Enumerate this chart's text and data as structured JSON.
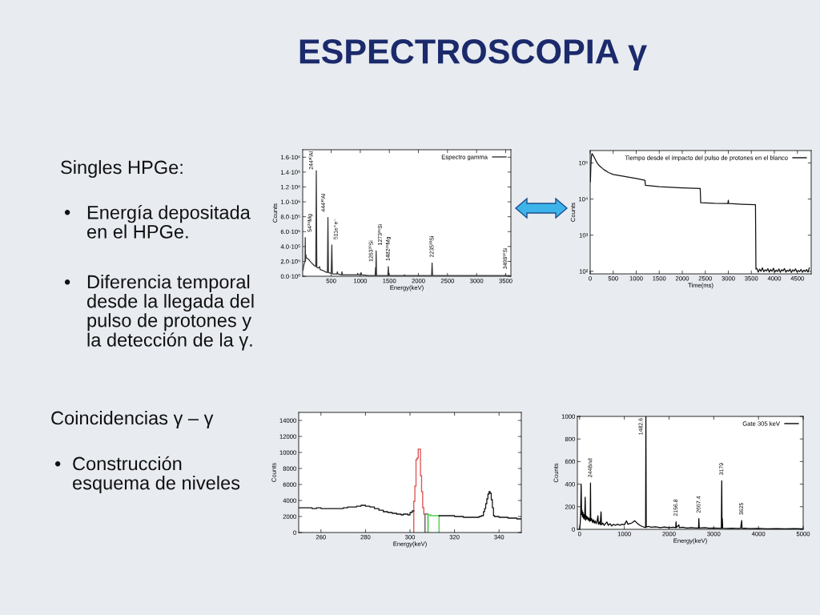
{
  "chart_data": [
    {
      "type": "other",
      "title": "ESPECTROSCOPIA γ",
      "annotations": [
        "Singles HPGe:",
        "• Energía depositada\nen el HPGe.",
        "• Diferencia temporal\ndesde la llegada del\npulso de protones y\nla detección de la γ."
      ]
    },
    {
      "type": "line",
      "xlabel": "Energy(keV)",
      "ylabel": "Counts",
      "legend": "top right",
      "series": [
        {
          "name": "Espectro gamma",
          "color": "#333333",
          "x": [
            15,
            30,
            45,
            50,
            54,
            58,
            62,
            66,
            70,
            90,
            120,
            150,
            200,
            235,
            244,
            253,
            280,
            300,
            310,
            350,
            400,
            435,
            444,
            453,
            500,
            511,
            520,
            600,
            605,
            615,
            680,
            685,
            695,
            800,
            950,
            955,
            965,
            1010,
            1015,
            1025,
            1150,
            1255,
            1263,
            1268,
            1273,
            1280,
            1400,
            1474,
            1482,
            1490,
            1750,
            1760,
            1770,
            2000,
            2227,
            2235,
            2243,
            2500,
            3000,
            3490,
            3498,
            3506,
            3580
          ],
          "values": [
            80000,
            150000,
            190000,
            200000,
            520000,
            210000,
            260000,
            290000,
            250000,
            240000,
            220000,
            190000,
            150000,
            130000,
            1420000,
            120000,
            110000,
            130000,
            90000,
            80000,
            60000,
            50000,
            790000,
            50000,
            40000,
            420000,
            30000,
            30000,
            60000,
            30000,
            20000,
            60000,
            20000,
            20000,
            20000,
            40000,
            20000,
            20000,
            50000,
            20000,
            10000,
            10000,
            120000,
            10000,
            340000,
            10000,
            10000,
            10000,
            130000,
            10000,
            10000,
            20000,
            10000,
            10000,
            10000,
            180000,
            10000,
            10000,
            10000,
            10000,
            20000,
            10000,
            10000
          ]
        }
      ],
      "xlim": [
        10,
        3590
      ],
      "xticks": [
        500,
        1000,
        1500,
        2000,
        2500,
        3000,
        3500
      ],
      "ylim": [
        0,
        1700000
      ],
      "yticks": [
        {
          "value": 0,
          "label": "0.0·10⁰"
        },
        {
          "value": 200000,
          "label": "2.0·10⁵"
        },
        {
          "value": 400000,
          "label": "4.0·10⁵"
        },
        {
          "value": 600000,
          "label": "6.0·10⁵"
        },
        {
          "value": 800000,
          "label": "8.0·10⁵"
        },
        {
          "value": 1000000,
          "label": "1.0·10⁶"
        },
        {
          "value": 1200000,
          "label": "1.2·10⁶"
        },
        {
          "value": 1400000,
          "label": "1.4·10⁶"
        },
        {
          "value": 1600000,
          "label": "1.6·10⁶"
        }
      ],
      "annotations": [
        {
          "text": "54²⁹Mg",
          "x": 54,
          "y": 520000
        },
        {
          "text": "244³⁰Al",
          "x": 244,
          "y": 1420000
        },
        {
          "text": "444³⁰Al",
          "x": 444,
          "y": 790000
        },
        {
          "text": "511e⁺e⁻",
          "x": 511,
          "y": 420000
        },
        {
          "text": "1263³⁰Si",
          "x": 1263,
          "y": 120000
        },
        {
          "text": "1273²⁹Si",
          "x": 1273,
          "y": 340000
        },
        {
          "text": "1482²⁹Mg",
          "x": 1482,
          "y": 130000
        },
        {
          "text": "2235³⁰Si",
          "x": 2235,
          "y": 180000
        },
        {
          "text": "3498³⁰Si",
          "x": 3498,
          "y": 20000
        }
      ]
    },
    {
      "type": "line",
      "xlabel": "Time(ms)",
      "ylabel": "Counts",
      "legend": "top right",
      "log": "y",
      "series": [
        {
          "name": "Tiempo desde el impacto del pulso de protones en el blanco",
          "color": "#111111",
          "x": [
            5,
            15,
            25,
            40,
            60,
            100,
            150,
            200,
            300,
            400,
            500,
            750,
            1000,
            1190,
            1200,
            1500,
            2000,
            2390,
            2400,
            2700,
            2990,
            3000,
            3010,
            3300,
            3590,
            3600,
            3620,
            3650,
            3680,
            3710,
            3740,
            3770,
            3800,
            3830,
            3860,
            3890,
            3920,
            3950,
            3980,
            4010,
            4040,
            4070,
            4100,
            4130,
            4160,
            4190,
            4220,
            4250,
            4280,
            4310,
            4340,
            4370,
            4400,
            4430,
            4460,
            4490,
            4520,
            4550,
            4580,
            4610,
            4640,
            4670,
            4700,
            4730,
            4760
          ],
          "values": [
            30000,
            80000,
            150000,
            180000,
            165000,
            134000,
            100000,
            83000,
            65000,
            54000,
            48000,
            42000,
            37000,
            33000,
            24000,
            22000,
            20500,
            19500,
            7900,
            7600,
            7500,
            9300,
            7500,
            7200,
            7000,
            115,
            120,
            95,
            115,
            100,
            125,
            97,
            110,
            102,
            118,
            95,
            112,
            100,
            122,
            96,
            108,
            99,
            116,
            94,
            111,
            103,
            119,
            95,
            107,
            100,
            115,
            93,
            110,
            101,
            117,
            96,
            105,
            98,
            113,
            94,
            108,
            99,
            112,
            95,
            125
          ]
        }
      ],
      "xlim": [
        0,
        4800
      ],
      "xticks": [
        0,
        500,
        1000,
        1500,
        2000,
        2500,
        3000,
        3500,
        4000,
        4500
      ],
      "ylim": [
        85,
        220000
      ],
      "yticks": [
        {
          "value": 100,
          "label": "10²"
        },
        {
          "value": 1000,
          "label": "10³"
        },
        {
          "value": 10000,
          "label": "10⁴"
        },
        {
          "value": 100000,
          "label": "10⁵"
        }
      ]
    },
    {
      "type": "other",
      "annotations": [
        "Coincidencias γ – γ",
        "• Construcción\nesquema de niveles"
      ]
    },
    {
      "type": "step",
      "xlabel": "Energy(keV)",
      "ylabel": "Counts",
      "series": [
        {
          "color": "#111111",
          "x": [
            250,
            252,
            254,
            256,
            258,
            260,
            262,
            264,
            266,
            268,
            270,
            272,
            274,
            276,
            278,
            280,
            282,
            284,
            286,
            288,
            290,
            292,
            294,
            296,
            297,
            298,
            299,
            300,
            301,
            301.7,
            313.05,
            314,
            316,
            318,
            320,
            322,
            324,
            326,
            328,
            330,
            331,
            332,
            333,
            333.5,
            334,
            334.5,
            335,
            335.5,
            336,
            336.5,
            337,
            337.5,
            338,
            340,
            342,
            344,
            346,
            348,
            350
          ],
          "values": [
            3100,
            3100,
            3100,
            3000,
            3100,
            3000,
            3000,
            3000,
            3000,
            3000,
            3100,
            3200,
            3200,
            3300,
            3400,
            3300,
            3200,
            3000,
            2800,
            2600,
            2500,
            2400,
            2300,
            2200,
            2300,
            2300,
            2200,
            2500,
            2700,
            null,
            2100,
            2100,
            2100,
            2100,
            2000,
            2000,
            1900,
            1900,
            1900,
            1900,
            2000,
            2100,
            2600,
            3000,
            3600,
            4200,
            4800,
            5100,
            4900,
            4100,
            3100,
            2100,
            2000,
            1900,
            1900,
            1800,
            1800,
            1700,
            1700
          ]
        },
        {
          "type": "histogram",
          "color": "#e05858",
          "bins": [
            301.7,
            302.2,
            302.7,
            303.2,
            303.7,
            304.2,
            304.7,
            305.2,
            305.7,
            306.2,
            306.7
          ],
          "values": [
            3900,
            5800,
            9100,
            9300,
            10400,
            10400,
            7100,
            5100,
            3100,
            2300
          ]
        },
        {
          "type": "histogram",
          "color": "#707070",
          "bins": [
            306.7,
            308.1
          ],
          "values": [
            2300
          ]
        },
        {
          "type": "histogram",
          "color": "#4fd24f",
          "bins": [
            308.1,
            309.3,
            310.5,
            311.7,
            313.05
          ],
          "values": [
            2200,
            2100,
            2100,
            2100
          ]
        }
      ],
      "xlim": [
        250,
        350
      ],
      "xticks": [
        260,
        280,
        300,
        320,
        340
      ],
      "ylim": [
        0,
        15000
      ],
      "yticks": [
        0,
        2000,
        4000,
        6000,
        8000,
        10000,
        12000,
        14000
      ]
    },
    {
      "type": "line",
      "xlabel": "Energy(keV)",
      "ylabel": "Counts",
      "legend": "top right",
      "series": [
        {
          "name": "Gate 305 keV",
          "color": "#000000",
          "x": [
            0,
            15,
            25,
            35,
            45,
            55,
            65,
            75,
            85,
            95,
            105,
            115,
            125,
            135,
            150,
            165,
            180,
            195,
            210,
            225,
            238,
            244,
            250,
            270,
            290,
            310,
            330,
            350,
            370,
            390,
            410,
            420,
            440,
            460,
            480,
            490,
            520,
            550,
            580,
            610,
            640,
            680,
            720,
            760,
            800,
            850,
            900,
            950,
            1000,
            1050,
            1080,
            1120,
            1160,
            1200,
            1230,
            1260,
            1300,
            1350,
            1400,
            1450,
            1476,
            1482.6,
            1490,
            1550,
            1600,
            1700,
            1800,
            1900,
            2000,
            2100,
            2150,
            2156.8,
            2165,
            2220,
            2230,
            2300,
            2400,
            2500,
            2600,
            2660,
            2667.4,
            2675,
            2800,
            2900,
            3000,
            3100,
            3170,
            3179,
            3185,
            3192,
            3200,
            3300,
            3400,
            3500,
            3600,
            3625,
            3632,
            3700,
            3800,
            4000,
            4200,
            4400,
            4600,
            4800,
            5000
          ],
          "values": [
            0,
            60,
            150,
            400,
            130,
            170,
            110,
            150,
            100,
            130,
            90,
            120,
            285,
            80,
            120,
            90,
            110,
            80,
            100,
            70,
            90,
            410,
            75,
            95,
            60,
            85,
            55,
            75,
            50,
            70,
            120,
            45,
            65,
            40,
            155,
            40,
            55,
            35,
            50,
            65,
            35,
            50,
            30,
            45,
            35,
            45,
            35,
            45,
            40,
            75,
            45,
            50,
            55,
            65,
            76,
            65,
            50,
            35,
            25,
            18,
            15,
            1000,
            20,
            25,
            18,
            22,
            15,
            20,
            15,
            18,
            15,
            67,
            15,
            40,
            15,
            18,
            12,
            15,
            12,
            12,
            95,
            12,
            15,
            10,
            12,
            10,
            10,
            430,
            10,
            95,
            10,
            8,
            10,
            8,
            8,
            78,
            8,
            10,
            6,
            8,
            5,
            7,
            5,
            6,
            4
          ]
        }
      ],
      "xlim": [
        -50,
        5000
      ],
      "xticks": [
        0,
        1000,
        2000,
        3000,
        4000,
        5000
      ],
      "ylim": [
        0,
        1000
      ],
      "yticks": [
        0,
        200,
        400,
        600,
        800,
        1000
      ],
      "annotations": [
        {
          "text": "244Bnd",
          "x": 244,
          "y": 410
        },
        {
          "text": "1482.6",
          "x": 1482.6,
          "y": 1000
        },
        {
          "text": "2156.8",
          "x": 2156.8,
          "y": 67
        },
        {
          "text": "2667.4",
          "x": 2667.4,
          "y": 95
        },
        {
          "text": "3179",
          "x": 3179,
          "y": 430
        },
        {
          "text": "3625",
          "x": 3625,
          "y": 78
        }
      ]
    }
  ]
}
